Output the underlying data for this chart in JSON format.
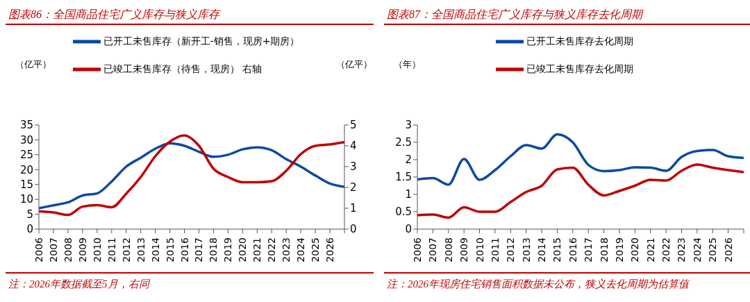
{
  "chart_data": [
    {
      "type": "line",
      "title": "图表86：全国商品住宅广义库存与狭义库存",
      "ylabel": "（亿平）",
      "y2label": "（亿平）",
      "x": [
        2006,
        2007,
        2008,
        2009,
        2010,
        2011,
        2012,
        2013,
        2014,
        2015,
        2016,
        2017,
        2018,
        2019,
        2020,
        2021,
        2022,
        2023,
        2024,
        2025,
        2026,
        2027
      ],
      "series": [
        {
          "name": "已开工未售库存（新开工-销售，现房+期房）",
          "color": "#0b4aa2",
          "values": [
            7,
            8,
            9,
            11.3,
            12,
            16,
            21,
            24,
            27,
            28.8,
            28,
            26,
            24.3,
            25,
            26.8,
            27.5,
            26.5,
            23.5,
            21,
            18,
            15.3,
            14.2
          ]
        },
        {
          "name": "已竣工未售库存（待售，现房） 右轴",
          "color": "#c00000",
          "axis": "y2",
          "values": [
            0.85,
            0.8,
            0.68,
            1.08,
            1.15,
            1.05,
            1.7,
            2.5,
            3.5,
            4.2,
            4.5,
            4.0,
            2.9,
            2.5,
            2.25,
            2.25,
            2.3,
            2.8,
            3.6,
            4.0,
            4.07,
            4.18
          ]
        }
      ],
      "xlim": [
        2006,
        2027
      ],
      "xticks": [
        2006,
        2007,
        2008,
        2009,
        2010,
        2011,
        2012,
        2013,
        2014,
        2015,
        2016,
        2017,
        2018,
        2019,
        2020,
        2021,
        2022,
        2023,
        2024,
        2025,
        2026,
        {
          "value": 2027,
          "label": null
        }
      ],
      "ylim": [
        0,
        35
      ],
      "yticks": [
        0,
        5,
        10,
        15,
        20,
        25,
        30,
        35
      ],
      "y2lim": [
        0,
        5
      ],
      "y2ticks": [
        0,
        1,
        2,
        3,
        4,
        5
      ],
      "legend": "top",
      "grid": false,
      "marker": "none",
      "annotations": [
        "注：2026年数据截至5月，右同"
      ]
    },
    {
      "type": "line",
      "title": "图表87：全国商品住宅广义库存与狭义库存去化周期",
      "ylabel": "（年）",
      "x": [
        2006,
        2007,
        2008,
        2009,
        2010,
        2011,
        2012,
        2013,
        2014,
        2015,
        2016,
        2017,
        2018,
        2019,
        2020,
        2021,
        2022,
        2023,
        2024,
        2025,
        2026,
        2027
      ],
      "series": [
        {
          "name": "已开工未售库存去化周期",
          "color": "#0b4aa2",
          "values": [
            1.43,
            1.47,
            1.28,
            2.02,
            1.42,
            1.7,
            2.1,
            2.42,
            2.32,
            2.73,
            2.5,
            1.85,
            1.67,
            1.7,
            1.78,
            1.77,
            1.68,
            2.08,
            2.25,
            2.28,
            2.1,
            2.05
          ]
        },
        {
          "name": "已竣工未售库存去化周期",
          "color": "#c00000",
          "values": [
            0.4,
            0.42,
            0.33,
            0.63,
            0.5,
            0.5,
            0.78,
            1.07,
            1.25,
            1.72,
            1.77,
            1.28,
            0.97,
            1.1,
            1.25,
            1.42,
            1.4,
            1.68,
            1.86,
            1.77,
            1.7,
            1.64
          ]
        }
      ],
      "xlim": [
        2006,
        2027
      ],
      "xticks": [
        2006,
        2007,
        2008,
        2009,
        2010,
        2011,
        2012,
        2013,
        2014,
        2015,
        2016,
        2017,
        2018,
        2019,
        2020,
        2021,
        2022,
        2023,
        2024,
        2025,
        2026,
        {
          "value": 2027,
          "label": null
        }
      ],
      "ylim": [
        0,
        3
      ],
      "yticks": [
        0,
        0.5,
        1,
        1.5,
        2,
        2.5,
        3
      ],
      "legend": "top",
      "grid": false,
      "marker": "none",
      "annotations": [
        "注：2026年现房住宅销售面积数据未公布，狭义去化周期为估算值"
      ]
    }
  ]
}
